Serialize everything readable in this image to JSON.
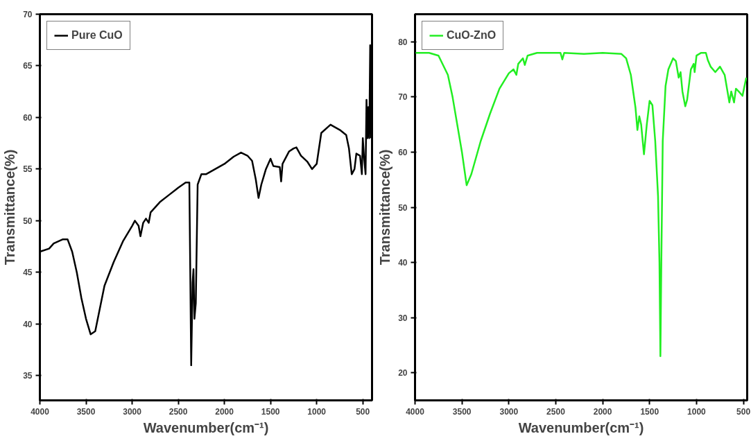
{
  "chart_data": [
    {
      "type": "line",
      "xlabel": "Wavenumber(cm⁻¹)",
      "ylabel": "Transmittance(%)",
      "xlim": [
        4000,
        400
      ],
      "ylim": [
        32.6,
        70
      ],
      "xticks": [
        4000,
        3500,
        3000,
        2500,
        2000,
        1500,
        1000,
        500
      ],
      "yticks": [
        35,
        40,
        45,
        50,
        55,
        60,
        65,
        70
      ],
      "legend": "top left",
      "grid": false,
      "series": [
        {
          "name": "Pure CuO",
          "color": "#000000",
          "x": [
            4000,
            3900,
            3850,
            3800,
            3750,
            3700,
            3650,
            3600,
            3550,
            3500,
            3450,
            3400,
            3350,
            3300,
            3200,
            3100,
            3000,
            2970,
            2930,
            2910,
            2880,
            2850,
            2820,
            2800,
            2700,
            2600,
            2500,
            2420,
            2380,
            2370,
            2360,
            2345,
            2335,
            2325,
            2310,
            2290,
            2250,
            2200,
            2100,
            2000,
            1900,
            1820,
            1750,
            1700,
            1660,
            1630,
            1600,
            1550,
            1500,
            1470,
            1400,
            1385,
            1370,
            1300,
            1250,
            1220,
            1170,
            1100,
            1050,
            1000,
            950,
            850,
            750,
            680,
            650,
            620,
            590,
            570,
            530,
            510,
            500,
            485,
            470,
            460,
            450,
            440,
            430,
            420,
            410
          ],
          "values": [
            47,
            47.3,
            47.8,
            48,
            48.2,
            48.2,
            47,
            45,
            42.5,
            40.5,
            39,
            39.3,
            41.5,
            43.7,
            46,
            48,
            49.5,
            50,
            49.5,
            48.5,
            49.8,
            50.2,
            49.8,
            50.8,
            51.8,
            52.5,
            53.2,
            53.7,
            53.7,
            45,
            36,
            44,
            45.3,
            40.5,
            42,
            53.5,
            54.5,
            54.5,
            55,
            55.5,
            56.2,
            56.6,
            56.3,
            55.8,
            54,
            52.2,
            53.5,
            55,
            56,
            55.3,
            55.2,
            53.8,
            55.5,
            56.7,
            57,
            57.1,
            56.3,
            55.7,
            55,
            55.5,
            58.5,
            59.3,
            58.8,
            58.3,
            57,
            54.5,
            55,
            56.5,
            56.3,
            54.5,
            58,
            56,
            54.5,
            61.7,
            58,
            61,
            58,
            67,
            58
          ]
        }
      ]
    },
    {
      "type": "line",
      "xlabel": "Wavenumber(cm⁻¹)",
      "ylabel": "Transmittance(%)",
      "xlim": [
        4000,
        460
      ],
      "ylim": [
        15,
        85
      ],
      "xticks": [
        4000,
        3500,
        3000,
        2500,
        2000,
        1500,
        1000,
        500
      ],
      "yticks": [
        20,
        30,
        40,
        50,
        60,
        70,
        80
      ],
      "legend": "top left",
      "grid": false,
      "series": [
        {
          "name": "CuO-ZnO",
          "color": "#22ee22",
          "x": [
            4000,
            3850,
            3750,
            3650,
            3600,
            3500,
            3450,
            3400,
            3300,
            3200,
            3100,
            3000,
            2950,
            2920,
            2900,
            2850,
            2830,
            2800,
            2700,
            2450,
            2430,
            2410,
            2200,
            2000,
            1800,
            1750,
            1700,
            1650,
            1630,
            1610,
            1590,
            1560,
            1530,
            1500,
            1470,
            1440,
            1410,
            1395,
            1385,
            1375,
            1360,
            1330,
            1300,
            1250,
            1220,
            1190,
            1170,
            1150,
            1120,
            1100,
            1060,
            1030,
            1020,
            1000,
            950,
            900,
            880,
            850,
            800,
            750,
            700,
            670,
            650,
            630,
            600,
            580,
            540,
            510,
            470
          ],
          "values": [
            78,
            78,
            77.5,
            74,
            70,
            60,
            54,
            56,
            62,
            67,
            71.5,
            74.3,
            75,
            74,
            76,
            77,
            75.8,
            77.5,
            78,
            78,
            76.8,
            78,
            77.8,
            78,
            77.8,
            77,
            74,
            68,
            64,
            66.5,
            65,
            59.6,
            65,
            69.3,
            68.5,
            62,
            52,
            40,
            23,
            40,
            62,
            72,
            75,
            77,
            76.5,
            73.5,
            74.5,
            71,
            68.3,
            69.5,
            75,
            76,
            74.5,
            77.5,
            78,
            78,
            76.7,
            75.5,
            74.5,
            75.5,
            74,
            71,
            69,
            71,
            69,
            71.5,
            70.8,
            70.2,
            73.5
          ]
        }
      ]
    }
  ]
}
